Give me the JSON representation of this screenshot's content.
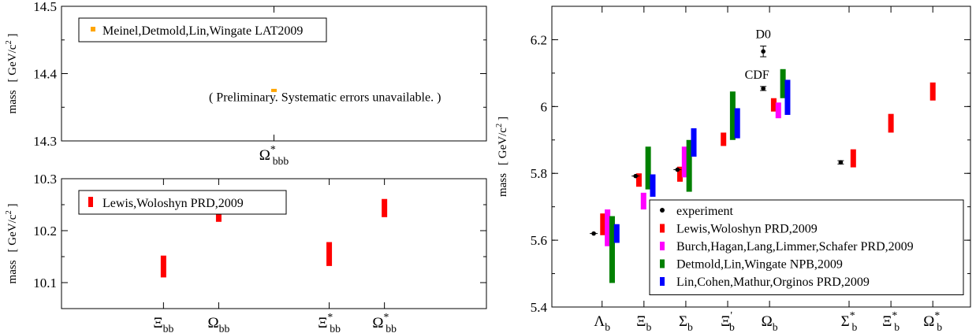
{
  "colors": {
    "experiment": "#000000",
    "lewis": "#ff0000",
    "burch": "#ff00ff",
    "detmold": "#008000",
    "lin": "#0000ff",
    "meinel": "#ffa500"
  },
  "chart_data": [
    {
      "id": "top-left",
      "type": "scatter",
      "ylabel_main": "mass",
      "ylabel_unit": "[ GeV/c",
      "ylabel_sup": "2",
      "ylabel_close": " ]",
      "ylim": [
        14.3,
        14.5
      ],
      "yticks": [
        14.3,
        14.4,
        14.5
      ],
      "ytick_labels": [
        "14.3",
        "14.4",
        "14.5"
      ],
      "categories": [
        {
          "base": "Ω",
          "sup": "*",
          "sub": "bbb",
          "pos": 0.5
        }
      ],
      "legend": {
        "placement": "top-left",
        "entries": [
          {
            "name": "Meinel,Detmold,Lin,Wingate LAT2009",
            "color": "#ffa500"
          }
        ]
      },
      "annotation": "( Preliminary.  Systematic errors unavailable. )",
      "series": [
        {
          "name": "Meinel,Detmold,Lin,Wingate LAT2009",
          "color": "#ffa500",
          "points": [
            {
              "pos": 0.5,
              "low": 14.373,
              "high": 14.377
            }
          ]
        }
      ]
    },
    {
      "id": "bottom-left",
      "type": "scatter",
      "ylabel_main": "mass",
      "ylabel_unit": "[ GeV/c",
      "ylabel_sup": "2",
      "ylabel_close": " ]",
      "ylim": [
        10.05,
        10.3
      ],
      "yticks": [
        10.1,
        10.2,
        10.3
      ],
      "ytick_labels": [
        "10.1",
        "10.2",
        "10.3"
      ],
      "categories": [
        {
          "base": "Ξ",
          "sup": "",
          "sub": "bb",
          "pos": 0.24
        },
        {
          "base": "Ω",
          "sup": "",
          "sub": "bb",
          "pos": 0.37
        },
        {
          "base": "Ξ",
          "sup": "*",
          "sub": "bb",
          "pos": 0.63
        },
        {
          "base": "Ω",
          "sup": "*",
          "sub": "bb",
          "pos": 0.76
        }
      ],
      "legend": {
        "placement": "top-left",
        "entries": [
          {
            "name": "Lewis,Woloshyn PRD,2009",
            "color": "#ff0000"
          }
        ]
      },
      "series": [
        {
          "name": "Lewis,Woloshyn PRD,2009",
          "color": "#ff0000",
          "points": [
            {
              "pos": 0.24,
              "low": 10.11,
              "high": 10.152
            },
            {
              "pos": 0.37,
              "low": 10.217,
              "high": 10.24
            },
            {
              "pos": 0.63,
              "low": 10.132,
              "high": 10.178
            },
            {
              "pos": 0.76,
              "low": 10.226,
              "high": 10.261
            }
          ]
        }
      ]
    },
    {
      "id": "right",
      "type": "scatter",
      "ylabel_main": "mass",
      "ylabel_unit": "[ GeV/c",
      "ylabel_sup": "2",
      "ylabel_close": " ]",
      "ylim": [
        5.4,
        6.3
      ],
      "yticks": [
        5.4,
        5.6,
        5.8,
        6.0,
        6.2
      ],
      "ytick_labels": [
        "5.4",
        "5.6",
        "5.8",
        "6",
        "6.2"
      ],
      "categories": [
        {
          "base": "Λ",
          "sup": "",
          "sub": "b",
          "pos": 0.12
        },
        {
          "base": "Ξ",
          "sup": "",
          "sub": "b",
          "pos": 0.22
        },
        {
          "base": "Σ",
          "sup": "",
          "sub": "b",
          "pos": 0.32
        },
        {
          "base": "Ξ",
          "sup": "'",
          "sub": "b",
          "pos": 0.42
        },
        {
          "base": "Ω",
          "sup": "",
          "sub": "b",
          "pos": 0.52
        },
        {
          "base": "Σ",
          "sup": "*",
          "sub": "b",
          "pos": 0.71
        },
        {
          "base": "Ξ",
          "sup": "*",
          "sub": "b",
          "pos": 0.81
        },
        {
          "base": "Ω",
          "sup": "*",
          "sub": "b",
          "pos": 0.91
        }
      ],
      "annotations": [
        {
          "text": "D0",
          "pos": 0.505,
          "y": 6.205
        },
        {
          "text": "CDF",
          "pos": 0.49,
          "y": 6.083
        }
      ],
      "legend": {
        "placement": "bottom-right",
        "entries": [
          {
            "name": "experiment",
            "color": "#000000",
            "kind": "dot"
          },
          {
            "name": "Lewis,Woloshyn PRD,2009",
            "color": "#ff0000",
            "kind": "bar"
          },
          {
            "name": "Burch,Hagan,Lang,Limmer,Schafer PRD,2009",
            "color": "#ff00ff",
            "kind": "bar"
          },
          {
            "name": "Detmold,Lin,Wingate NPB,2009",
            "color": "#008000",
            "kind": "bar"
          },
          {
            "name": "Lin,Cohen,Mathur,Orginos PRD,2009",
            "color": "#0000ff",
            "kind": "bar"
          }
        ]
      },
      "experiment": [
        {
          "pos": 0.1,
          "y": 5.62,
          "err": 0.002
        },
        {
          "pos": 0.2,
          "y": 5.792,
          "err": 0.003
        },
        {
          "pos": 0.3,
          "y": 5.811,
          "err": 0.003
        },
        {
          "pos": 0.505,
          "y": 6.165,
          "err": 0.016
        },
        {
          "pos": 0.505,
          "y": 6.054,
          "err": 0.006
        },
        {
          "pos": 0.69,
          "y": 5.833,
          "err": 0.005
        }
      ],
      "series": [
        {
          "name": "Lewis,Woloshyn PRD,2009",
          "color": "#ff0000",
          "points": [
            {
              "pos": 0.122,
              "low": 5.615,
              "high": 5.68
            },
            {
              "pos": 0.208,
              "low": 5.76,
              "high": 5.8
            },
            {
              "pos": 0.306,
              "low": 5.775,
              "high": 5.82
            },
            {
              "pos": 0.41,
              "low": 5.882,
              "high": 5.922
            },
            {
              "pos": 0.53,
              "low": 5.985,
              "high": 6.025
            },
            {
              "pos": 0.72,
              "low": 5.818,
              "high": 5.872
            },
            {
              "pos": 0.81,
              "low": 5.922,
              "high": 5.978
            },
            {
              "pos": 0.91,
              "low": 6.018,
              "high": 6.072
            }
          ]
        },
        {
          "name": "Burch,Hagan,Lang,Limmer,Schafer PRD,2009",
          "color": "#ff00ff",
          "points": [
            {
              "pos": 0.133,
              "low": 5.582,
              "high": 5.692
            },
            {
              "pos": 0.219,
              "low": 5.692,
              "high": 5.742
            },
            {
              "pos": 0.317,
              "low": 5.788,
              "high": 5.88
            },
            {
              "pos": 0.541,
              "low": 5.965,
              "high": 6.012
            }
          ]
        },
        {
          "name": "Detmold,Lin,Wingate NPB,2009",
          "color": "#008000",
          "points": [
            {
              "pos": 0.144,
              "low": 5.472,
              "high": 5.672
            },
            {
              "pos": 0.23,
              "low": 5.752,
              "high": 5.88
            },
            {
              "pos": 0.328,
              "low": 5.745,
              "high": 5.9
            },
            {
              "pos": 0.432,
              "low": 5.9,
              "high": 6.045
            },
            {
              "pos": 0.552,
              "low": 6.025,
              "high": 6.112
            }
          ]
        },
        {
          "name": "Lin,Cohen,Mathur,Orginos PRD,2009",
          "color": "#0000ff",
          "points": [
            {
              "pos": 0.155,
              "low": 5.592,
              "high": 5.648
            },
            {
              "pos": 0.241,
              "low": 5.73,
              "high": 5.797
            },
            {
              "pos": 0.339,
              "low": 5.85,
              "high": 5.935
            },
            {
              "pos": 0.443,
              "low": 5.905,
              "high": 5.995
            },
            {
              "pos": 0.563,
              "low": 5.975,
              "high": 6.08
            }
          ]
        }
      ]
    }
  ]
}
